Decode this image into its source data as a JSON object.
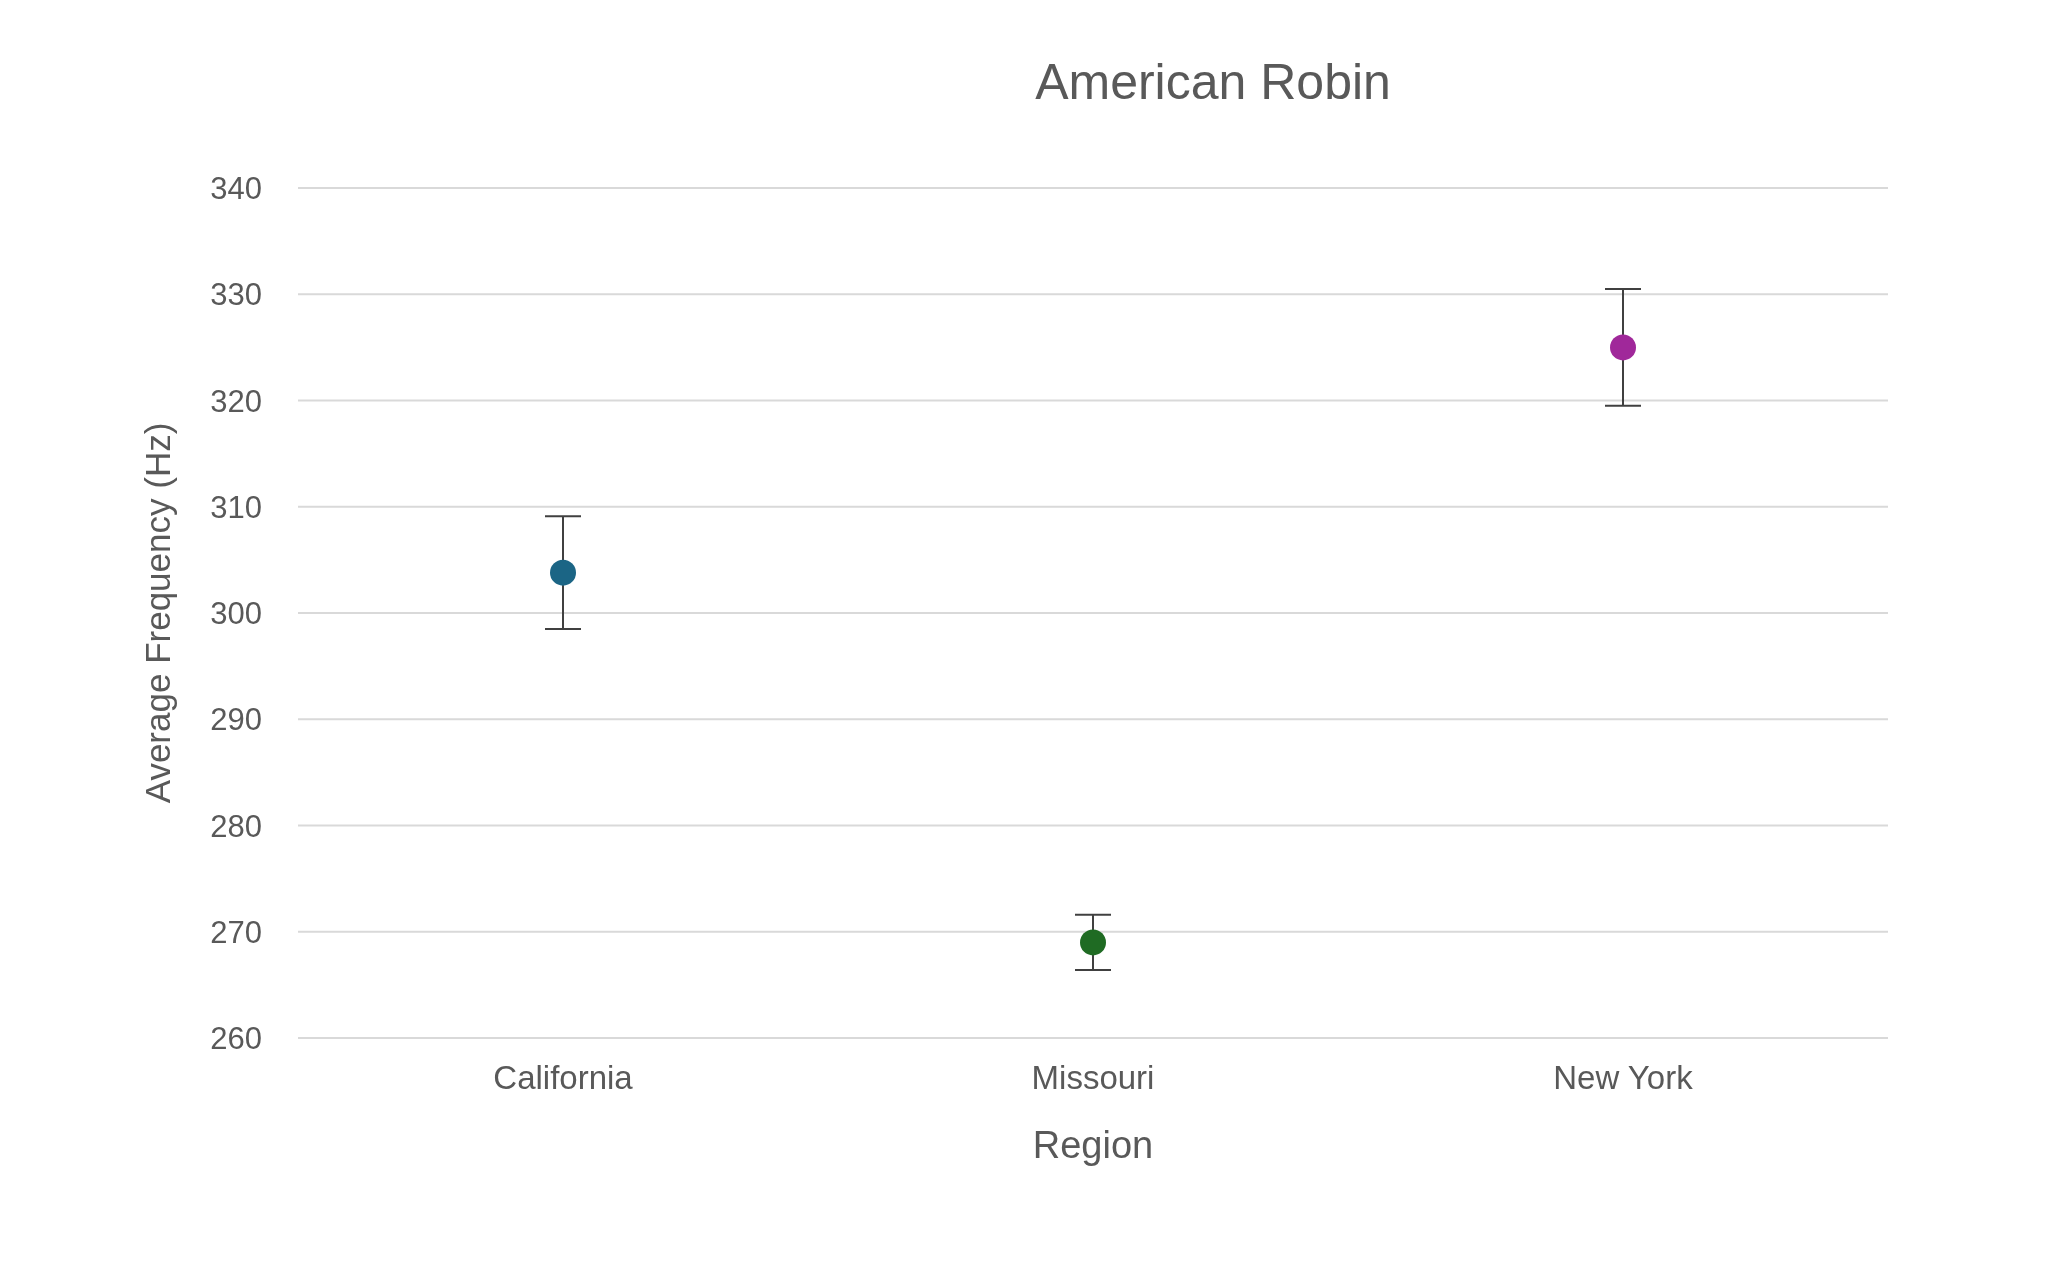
{
  "chart_data": {
    "type": "scatter",
    "title": "American Robin",
    "xlabel": "Region",
    "ylabel": "Average Frequency (Hz)",
    "categories": [
      "California",
      "Missouri",
      "New York"
    ],
    "values": [
      303.8,
      269.0,
      325.0
    ],
    "errors": [
      5.3,
      2.6,
      5.5
    ],
    "colors": [
      "#1b6585",
      "#1f6b23",
      "#a0289a"
    ],
    "ylim": [
      260,
      340
    ],
    "yticks": [
      260,
      270,
      280,
      290,
      300,
      310,
      320,
      330,
      340
    ],
    "grid": "y",
    "marker": "circle"
  }
}
